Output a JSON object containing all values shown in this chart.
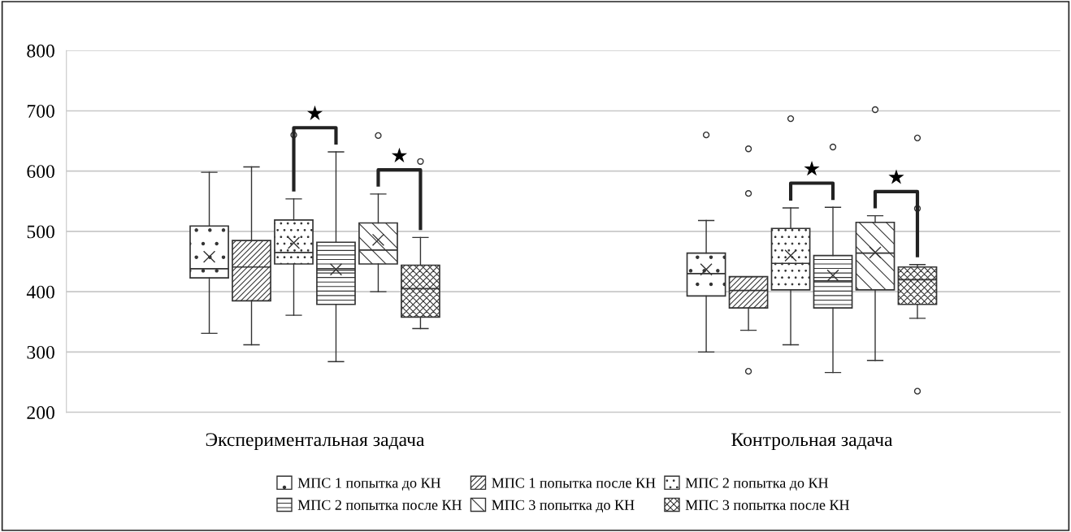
{
  "chart_data": {
    "type": "box",
    "categories": [
      "Экспериментальная задача",
      "Контрольная задача"
    ],
    "series": [
      {
        "name": "МПС 1 попытка до КН",
        "color": "#333333",
        "boxes": [
          {
            "low": 331,
            "q1": 423,
            "median": 438,
            "q3": 509,
            "high": 598,
            "mean": 458
          },
          {
            "low": 300,
            "q1": 393,
            "median": 430,
            "q3": 464,
            "high": 518,
            "mean": 437,
            "outliers": [
              660
            ]
          }
        ]
      },
      {
        "name": "МПС 1 попытка после КН",
        "color": "#333333",
        "boxes": [
          {
            "low": 312,
            "q1": 385,
            "median": 441,
            "q3": 485,
            "high": 607
          },
          {
            "low": 336,
            "q1": 373,
            "median": 402,
            "q3": 425,
            "high": 425,
            "outliers": [
              637,
              563,
              268
            ]
          }
        ]
      },
      {
        "name": "МПС 2 попытка до КН",
        "color": "#333333",
        "boxes": [
          {
            "low": 361,
            "q1": 446,
            "median": 465,
            "q3": 519,
            "high": 554,
            "mean": 481,
            "outliers": [
              660
            ]
          },
          {
            "low": 312,
            "q1": 403,
            "median": 447,
            "q3": 505,
            "high": 539,
            "mean": 460,
            "outliers": [
              687
            ]
          }
        ]
      },
      {
        "name": "МПС 2 попытка после КН",
        "color": "#333333",
        "boxes": [
          {
            "low": 284,
            "q1": 379,
            "median": 436,
            "q3": 482,
            "high": 632,
            "mean": 437
          },
          {
            "low": 266,
            "q1": 373,
            "median": 418,
            "q3": 460,
            "high": 540,
            "mean": 427,
            "outliers": [
              640
            ]
          }
        ]
      },
      {
        "name": "МПС 3 попытка до КН",
        "color": "#333333",
        "boxes": [
          {
            "low": 400,
            "q1": 446,
            "median": 469,
            "q3": 514,
            "high": 562,
            "mean": 486,
            "outliers": [
              659
            ]
          },
          {
            "low": 286,
            "q1": 403,
            "median": 464,
            "q3": 515,
            "high": 526,
            "mean": 465,
            "outliers": [
              702
            ]
          }
        ]
      },
      {
        "name": "МПС 3 попытка после КН",
        "color": "#333333",
        "boxes": [
          {
            "low": 339,
            "q1": 358,
            "median": 405,
            "q3": 444,
            "high": 490,
            "outliers": [
              616
            ]
          },
          {
            "low": 356,
            "q1": 379,
            "median": 420,
            "q3": 441,
            "high": 445,
            "outliers": [
              655,
              538,
              235
            ]
          }
        ]
      }
    ],
    "ylim": [
      200,
      800
    ],
    "yticks": [
      200,
      300,
      400,
      500,
      600,
      700,
      800
    ],
    "grid": "y",
    "legend": "bottom",
    "annotations": [
      "★",
      "★",
      "★",
      "★"
    ]
  }
}
